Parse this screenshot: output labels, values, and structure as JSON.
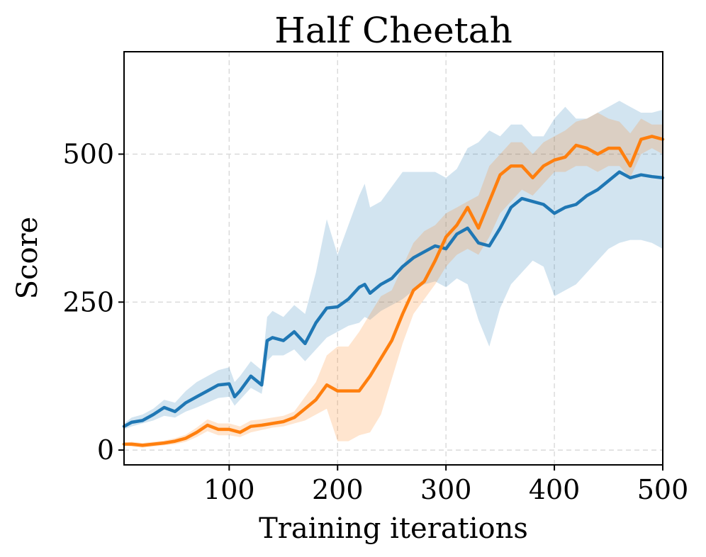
{
  "chart_data": {
    "type": "line",
    "title": "Half Cheetah",
    "xlabel": "Training iterations",
    "ylabel": "Score",
    "xlim": [
      3,
      500
    ],
    "ylim": [
      -25,
      673
    ],
    "xticks": [
      100,
      200,
      300,
      400,
      500
    ],
    "yticks": [
      0,
      250,
      500
    ],
    "grid": true,
    "legend": "none",
    "series": [
      {
        "name": "blue",
        "color": "#1f77b4",
        "band_color": "#1f77b4",
        "x": [
          3,
          10,
          20,
          30,
          40,
          50,
          60,
          70,
          80,
          90,
          100,
          105,
          110,
          120,
          130,
          135,
          140,
          150,
          160,
          170,
          180,
          190,
          200,
          210,
          220,
          225,
          230,
          240,
          250,
          260,
          270,
          280,
          290,
          300,
          310,
          320,
          330,
          340,
          350,
          360,
          370,
          380,
          390,
          400,
          410,
          420,
          430,
          440,
          450,
          460,
          470,
          480,
          490,
          500
        ],
        "mean": [
          40,
          47,
          50,
          60,
          72,
          65,
          80,
          90,
          100,
          110,
          112,
          90,
          100,
          125,
          110,
          185,
          190,
          185,
          200,
          180,
          215,
          240,
          242,
          255,
          275,
          280,
          265,
          280,
          290,
          310,
          325,
          335,
          345,
          340,
          365,
          375,
          350,
          345,
          375,
          410,
          425,
          420,
          415,
          400,
          410,
          415,
          430,
          440,
          455,
          470,
          460,
          465,
          462,
          460
        ],
        "lower": [
          35,
          40,
          45,
          50,
          58,
          55,
          65,
          72,
          80,
          88,
          90,
          75,
          85,
          105,
          95,
          150,
          160,
          160,
          170,
          150,
          170,
          190,
          200,
          210,
          215,
          225,
          220,
          235,
          245,
          255,
          270,
          280,
          285,
          275,
          290,
          280,
          220,
          175,
          240,
          280,
          300,
          320,
          310,
          260,
          270,
          280,
          300,
          320,
          340,
          350,
          355,
          355,
          350,
          340
        ],
        "upper": [
          45,
          55,
          60,
          70,
          85,
          80,
          100,
          115,
          125,
          135,
          140,
          115,
          125,
          150,
          135,
          225,
          235,
          225,
          245,
          230,
          300,
          390,
          330,
          380,
          430,
          450,
          410,
          420,
          445,
          470,
          470,
          470,
          470,
          460,
          475,
          510,
          520,
          540,
          530,
          550,
          550,
          530,
          530,
          560,
          580,
          560,
          560,
          570,
          580,
          590,
          580,
          570,
          570,
          575
        ]
      },
      {
        "name": "orange",
        "color": "#ff7f0e",
        "band_color": "#ff7f0e",
        "x": [
          3,
          10,
          20,
          30,
          40,
          50,
          60,
          70,
          80,
          90,
          100,
          110,
          120,
          130,
          140,
          150,
          160,
          170,
          180,
          190,
          200,
          210,
          220,
          230,
          240,
          250,
          260,
          270,
          280,
          290,
          300,
          310,
          320,
          330,
          340,
          350,
          360,
          370,
          380,
          390,
          400,
          410,
          420,
          430,
          440,
          450,
          460,
          470,
          480,
          490,
          500
        ],
        "mean": [
          10,
          10,
          8,
          10,
          12,
          15,
          20,
          30,
          42,
          35,
          35,
          30,
          40,
          42,
          45,
          48,
          55,
          70,
          85,
          110,
          100,
          100,
          100,
          125,
          155,
          185,
          230,
          270,
          285,
          320,
          360,
          380,
          410,
          375,
          420,
          465,
          480,
          480,
          460,
          480,
          490,
          495,
          515,
          510,
          500,
          510,
          510,
          480,
          525,
          530,
          525
        ],
        "lower": [
          8,
          6,
          4,
          6,
          8,
          10,
          14,
          22,
          32,
          25,
          25,
          22,
          30,
          34,
          38,
          40,
          45,
          50,
          60,
          70,
          15,
          15,
          25,
          30,
          60,
          120,
          180,
          230,
          255,
          280,
          310,
          330,
          340,
          330,
          360,
          400,
          420,
          440,
          430,
          450,
          470,
          470,
          480,
          480,
          470,
          480,
          480,
          460,
          500,
          510,
          500
        ],
        "upper": [
          12,
          14,
          12,
          14,
          16,
          20,
          26,
          38,
          52,
          45,
          45,
          40,
          50,
          52,
          55,
          58,
          65,
          90,
          115,
          160,
          175,
          175,
          200,
          230,
          260,
          270,
          310,
          350,
          370,
          380,
          400,
          410,
          420,
          430,
          480,
          500,
          520,
          520,
          500,
          520,
          530,
          540,
          555,
          560,
          570,
          560,
          555,
          535,
          560,
          550,
          550
        ]
      }
    ]
  }
}
